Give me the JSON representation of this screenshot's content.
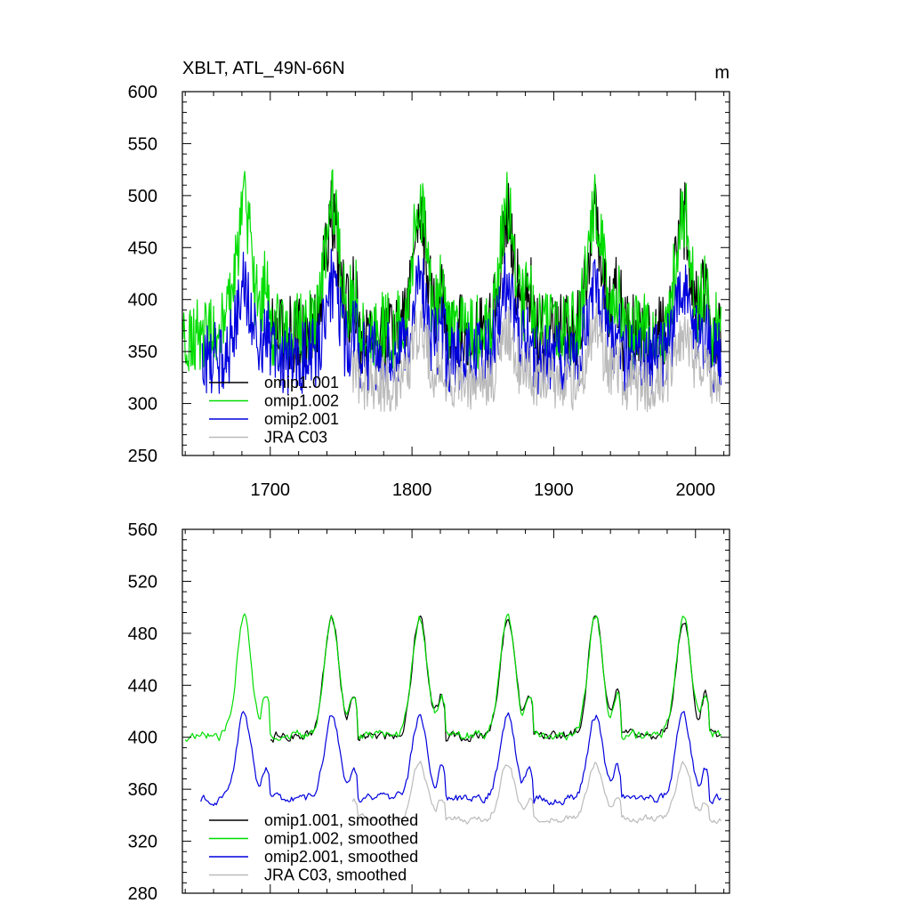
{
  "chart_data": [
    {
      "type": "line",
      "title": "XBLT, ATL_49N-66N",
      "units": "m",
      "xlim": [
        1638,
        2024
      ],
      "ylim": [
        250,
        600
      ],
      "xticks": [
        1700,
        1800,
        1900,
        2000
      ],
      "yticks": [
        250,
        300,
        350,
        400,
        450,
        500,
        550,
        600
      ],
      "grid": false,
      "legend_position": "bottom-left",
      "series": [
        {
          "name": "omip1.001",
          "color": "#000000",
          "start": 1700,
          "end": 2018,
          "base": 400,
          "amp": 55,
          "noise": 38
        },
        {
          "name": "omip1.002",
          "color": "#00dd00",
          "start": 1638,
          "end": 2018,
          "base": 405,
          "amp": 60,
          "noise": 38
        },
        {
          "name": "omip2.001",
          "color": "#0000dd",
          "start": 1652,
          "end": 2018,
          "base": 365,
          "amp": 35,
          "noise": 35
        },
        {
          "name": "JRA C03",
          "color": "#bbbbbb",
          "start": 1758,
          "end": 2018,
          "base": 335,
          "amp": 25,
          "noise": 28
        }
      ]
    },
    {
      "type": "line",
      "title": "",
      "xlim": [
        1638,
        2024
      ],
      "ylim": [
        280,
        560
      ],
      "xticks": [
        1700,
        1800,
        1900,
        2000
      ],
      "yticks": [
        280,
        320,
        360,
        400,
        440,
        480,
        520,
        560
      ],
      "grid": false,
      "legend_position": "bottom-left",
      "series": [
        {
          "name": "omip1.001, smoothed",
          "color": "#000000",
          "start": 1700,
          "end": 2018,
          "base": 428,
          "amp": 45,
          "noise": 8
        },
        {
          "name": "omip1.002, smoothed",
          "color": "#00dd00",
          "start": 1640,
          "end": 2018,
          "base": 428,
          "amp": 45,
          "noise": 8
        },
        {
          "name": "omip2.001, smoothed",
          "color": "#0000dd",
          "start": 1651,
          "end": 2018,
          "base": 372,
          "amp": 32,
          "noise": 7
        },
        {
          "name": "JRA C03, smoothed",
          "color": "#bbbbbb",
          "start": 1758,
          "end": 2018,
          "base": 350,
          "amp": 22,
          "noise": 6
        }
      ]
    }
  ]
}
